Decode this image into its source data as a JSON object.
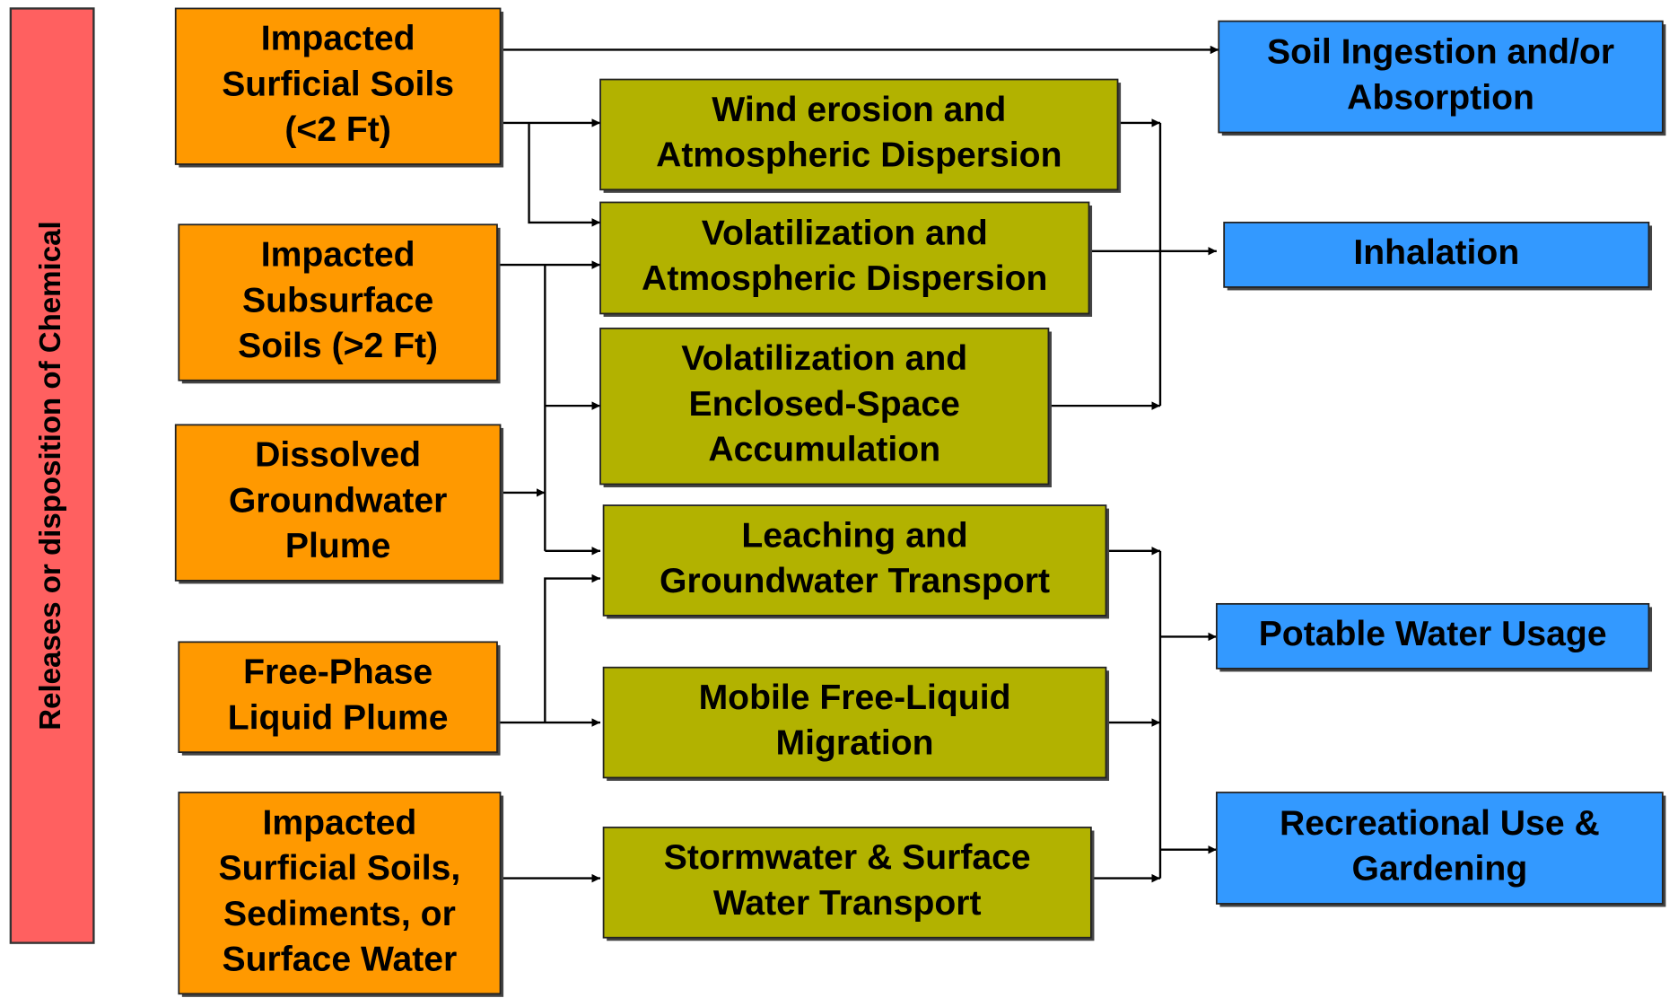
{
  "sidebar": {
    "label": "Releases or disposition of Chemical"
  },
  "sources": [
    {
      "lines": [
        "Impacted",
        "Surficial Soils",
        "(<2 Ft)"
      ]
    },
    {
      "lines": [
        "Impacted",
        "Subsurface",
        "Soils (>2 Ft)"
      ]
    },
    {
      "lines": [
        "Dissolved",
        "Groundwater",
        "Plume"
      ]
    },
    {
      "lines": [
        "Free-Phase",
        "Liquid Plume"
      ]
    },
    {
      "lines": [
        "Impacted",
        "Surficial Soils,",
        "Sediments, or",
        "Surface Water"
      ]
    }
  ],
  "pathways": [
    {
      "lines": [
        "Wind erosion and",
        "Atmospheric Dispersion"
      ]
    },
    {
      "lines": [
        "Volatilization and",
        "Atmospheric Dispersion"
      ]
    },
    {
      "lines": [
        "Volatilization and",
        "Enclosed-Space",
        "Accumulation"
      ]
    },
    {
      "lines": [
        "Leaching and",
        "Groundwater Transport"
      ]
    },
    {
      "lines": [
        "Mobile Free-Liquid",
        "Migration"
      ]
    },
    {
      "lines": [
        "Stormwater & Surface",
        "Water Transport"
      ]
    }
  ],
  "receptors": [
    {
      "lines": [
        "Soil Ingestion and/or",
        "Absorption"
      ]
    },
    {
      "lines": [
        "Inhalation"
      ]
    },
    {
      "lines": [
        "Potable Water Usage"
      ]
    },
    {
      "lines": [
        "Recreational Use &",
        "Gardening"
      ]
    }
  ]
}
